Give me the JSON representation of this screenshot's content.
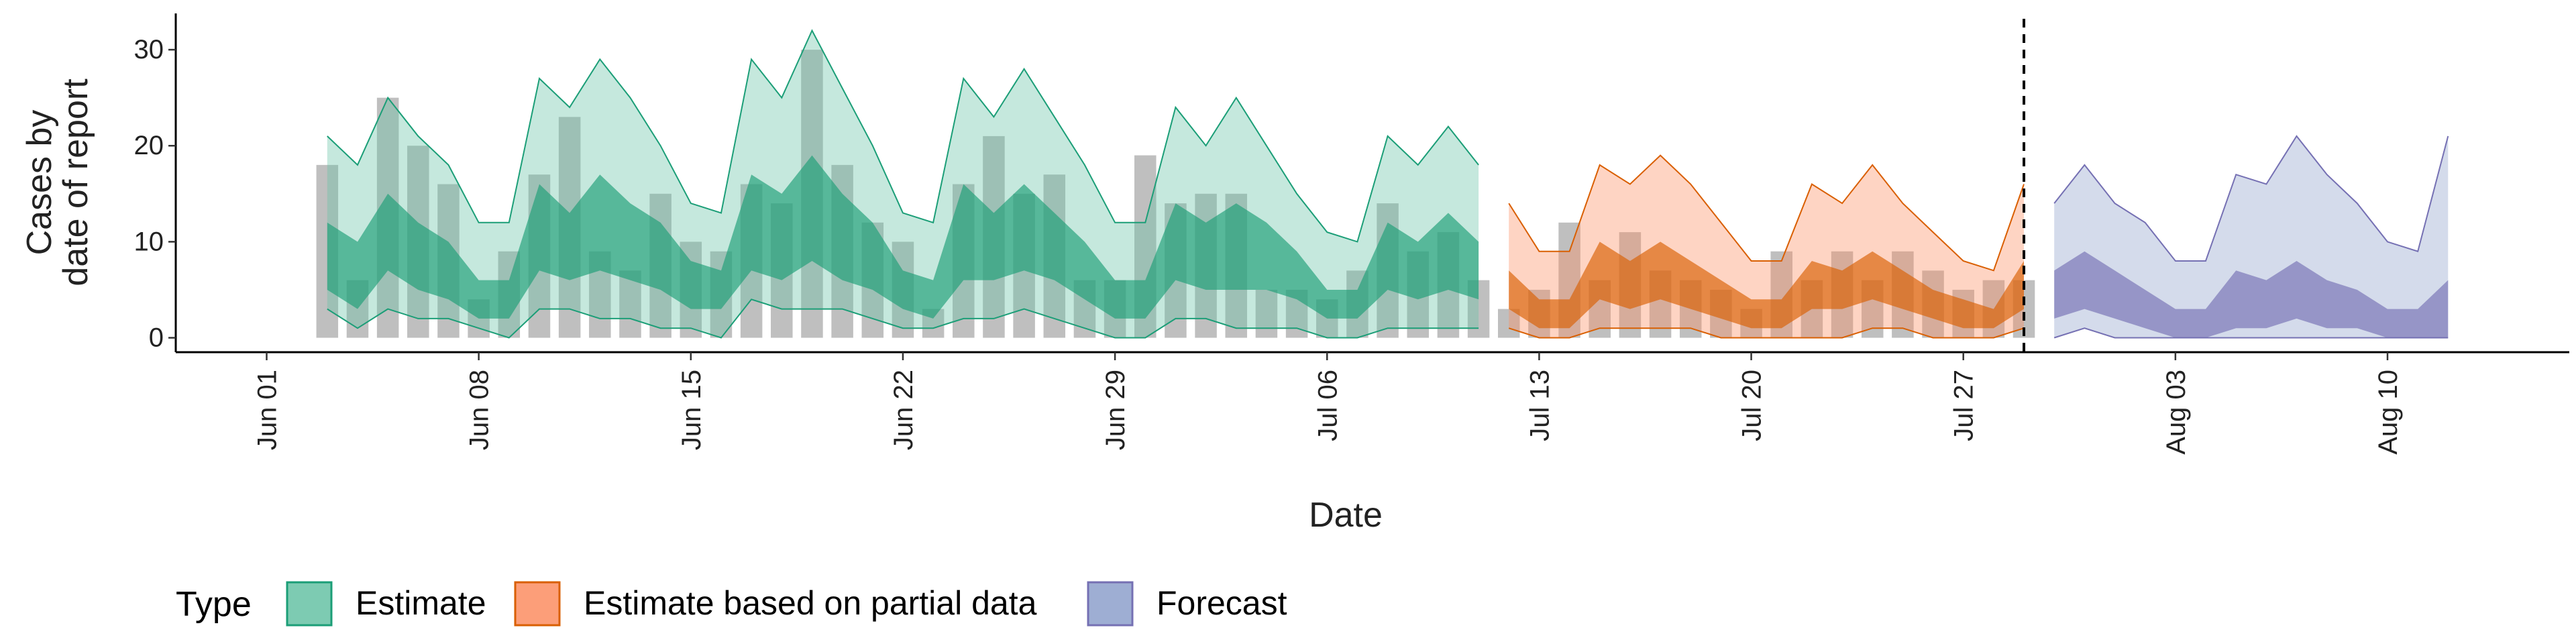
{
  "chart_data": {
    "type": "area",
    "xlabel": "Date",
    "ylabel": [
      "Cases by",
      "date of report"
    ],
    "x_ticks": [
      {
        "date": "2020-06-01",
        "label": "Jun 01"
      },
      {
        "date": "2020-06-08",
        "label": "Jun 08"
      },
      {
        "date": "2020-06-15",
        "label": "Jun 15"
      },
      {
        "date": "2020-06-22",
        "label": "Jun 22"
      },
      {
        "date": "2020-06-29",
        "label": "Jun 29"
      },
      {
        "date": "2020-07-06",
        "label": "Jul 06"
      },
      {
        "date": "2020-07-13",
        "label": "Jul 13"
      },
      {
        "date": "2020-07-20",
        "label": "Jul 20"
      },
      {
        "date": "2020-07-27",
        "label": "Jul 27"
      },
      {
        "date": "2020-08-03",
        "label": "Aug 03"
      },
      {
        "date": "2020-08-10",
        "label": "Aug 10"
      }
    ],
    "y_ticks": [
      0,
      10,
      20,
      30
    ],
    "xlim": [
      "2020-05-29",
      "2020-08-16"
    ],
    "ylim": [
      -1.5,
      33.5
    ],
    "grid": false,
    "vline_date": "2020-07-29",
    "legend": {
      "title": "Type",
      "position": "bottom",
      "entries": [
        {
          "label": "Estimate",
          "fill": "#66c2a5",
          "stroke": "#1b9e77"
        },
        {
          "label": "Estimate based on partial data",
          "fill": "#fc8d62",
          "stroke": "#d95f02"
        },
        {
          "label": "Forecast",
          "fill": "#8da0cb",
          "stroke": "#7570b3"
        }
      ]
    },
    "bars": {
      "color": "#a9a9a9",
      "dates": [
        "2020-06-03",
        "2020-06-04",
        "2020-06-05",
        "2020-06-06",
        "2020-06-07",
        "2020-06-08",
        "2020-06-09",
        "2020-06-10",
        "2020-06-11",
        "2020-06-12",
        "2020-06-13",
        "2020-06-14",
        "2020-06-15",
        "2020-06-16",
        "2020-06-17",
        "2020-06-18",
        "2020-06-19",
        "2020-06-20",
        "2020-06-21",
        "2020-06-22",
        "2020-06-23",
        "2020-06-24",
        "2020-06-25",
        "2020-06-26",
        "2020-06-27",
        "2020-06-28",
        "2020-06-29",
        "2020-06-30",
        "2020-07-01",
        "2020-07-02",
        "2020-07-03",
        "2020-07-04",
        "2020-07-05",
        "2020-07-06",
        "2020-07-07",
        "2020-07-08",
        "2020-07-09",
        "2020-07-10",
        "2020-07-11",
        "2020-07-12",
        "2020-07-13",
        "2020-07-14",
        "2020-07-15",
        "2020-07-16",
        "2020-07-17",
        "2020-07-18",
        "2020-07-19",
        "2020-07-20",
        "2020-07-21",
        "2020-07-22",
        "2020-07-23",
        "2020-07-24",
        "2020-07-25",
        "2020-07-26",
        "2020-07-27",
        "2020-07-28",
        "2020-07-29"
      ],
      "values": [
        18,
        6,
        25,
        20,
        16,
        4,
        9,
        17,
        23,
        9,
        7,
        15,
        10,
        9,
        16,
        14,
        30,
        18,
        12,
        10,
        3,
        16,
        21,
        15,
        17,
        6,
        6,
        19,
        14,
        15,
        15,
        5,
        5,
        4,
        7,
        14,
        9,
        11,
        6,
        3,
        5,
        12,
        6,
        11,
        7,
        6,
        5,
        3,
        9,
        6,
        9,
        6,
        9,
        7,
        5,
        6,
        6
      ]
    },
    "series": [
      {
        "name": "Estimate",
        "dates": [
          "2020-06-03",
          "2020-06-04",
          "2020-06-05",
          "2020-06-06",
          "2020-06-07",
          "2020-06-08",
          "2020-06-09",
          "2020-06-10",
          "2020-06-11",
          "2020-06-12",
          "2020-06-13",
          "2020-06-14",
          "2020-06-15",
          "2020-06-16",
          "2020-06-17",
          "2020-06-18",
          "2020-06-19",
          "2020-06-20",
          "2020-06-21",
          "2020-06-22",
          "2020-06-23",
          "2020-06-24",
          "2020-06-25",
          "2020-06-26",
          "2020-06-27",
          "2020-06-28",
          "2020-06-29",
          "2020-06-30",
          "2020-07-01",
          "2020-07-02",
          "2020-07-03",
          "2020-07-04",
          "2020-07-05",
          "2020-07-06",
          "2020-07-07",
          "2020-07-08",
          "2020-07-09",
          "2020-07-10",
          "2020-07-11"
        ],
        "outer_upper": [
          21,
          18,
          25,
          21,
          18,
          12,
          12,
          27,
          24,
          29,
          25,
          20,
          14,
          13,
          29,
          25,
          32,
          26,
          20,
          13,
          12,
          27,
          23,
          28,
          23,
          18,
          12,
          12,
          24,
          20,
          25,
          20,
          15,
          11,
          10,
          21,
          18,
          22,
          18
        ],
        "outer_lower": [
          3,
          1,
          3,
          2,
          2,
          1,
          0,
          3,
          3,
          2,
          2,
          1,
          1,
          0,
          4,
          3,
          3,
          3,
          2,
          1,
          1,
          2,
          2,
          3,
          2,
          1,
          0,
          0,
          2,
          2,
          1,
          1,
          1,
          0,
          0,
          1,
          1,
          1,
          1
        ],
        "inner_upper": [
          12,
          10,
          15,
          12,
          10,
          6,
          6,
          16,
          13,
          17,
          14,
          12,
          8,
          7,
          17,
          15,
          19,
          15,
          12,
          7,
          6,
          16,
          13,
          16,
          13,
          10,
          6,
          6,
          14,
          12,
          14,
          12,
          9,
          5,
          5,
          12,
          10,
          13,
          10
        ],
        "inner_lower": [
          5,
          3,
          7,
          5,
          4,
          2,
          2,
          7,
          6,
          7,
          6,
          5,
          3,
          3,
          7,
          6,
          8,
          6,
          5,
          3,
          2,
          6,
          6,
          7,
          6,
          4,
          2,
          2,
          6,
          5,
          5,
          5,
          4,
          2,
          2,
          5,
          4,
          5,
          4
        ]
      },
      {
        "name": "Estimate based on partial data",
        "dates": [
          "2020-07-12",
          "2020-07-13",
          "2020-07-14",
          "2020-07-15",
          "2020-07-16",
          "2020-07-17",
          "2020-07-18",
          "2020-07-19",
          "2020-07-20",
          "2020-07-21",
          "2020-07-22",
          "2020-07-23",
          "2020-07-24",
          "2020-07-25",
          "2020-07-26",
          "2020-07-27",
          "2020-07-28",
          "2020-07-29"
        ],
        "outer_upper": [
          14,
          9,
          9,
          18,
          16,
          19,
          16,
          12,
          8,
          8,
          16,
          14,
          18,
          14,
          11,
          8,
          7,
          16
        ],
        "outer_lower": [
          1,
          0,
          0,
          1,
          1,
          1,
          1,
          0,
          0,
          0,
          0,
          0,
          1,
          1,
          0,
          0,
          0,
          1
        ],
        "inner_upper": [
          7,
          4,
          4,
          10,
          8,
          10,
          8,
          6,
          4,
          4,
          8,
          7,
          9,
          7,
          5,
          4,
          3,
          8
        ],
        "inner_lower": [
          3,
          1,
          1,
          4,
          3,
          4,
          3,
          2,
          1,
          1,
          3,
          3,
          4,
          3,
          2,
          1,
          1,
          3
        ]
      },
      {
        "name": "Forecast",
        "dates": [
          "2020-07-30",
          "2020-07-31",
          "2020-08-01",
          "2020-08-02",
          "2020-08-03",
          "2020-08-04",
          "2020-08-05",
          "2020-08-06",
          "2020-08-07",
          "2020-08-08",
          "2020-08-09",
          "2020-08-10",
          "2020-08-11",
          "2020-08-12"
        ],
        "outer_upper": [
          14,
          18,
          14,
          12,
          8,
          8,
          17,
          16,
          21,
          17,
          14,
          10,
          9,
          21
        ],
        "outer_lower": [
          0,
          1,
          0,
          0,
          0,
          0,
          0,
          0,
          0,
          0,
          0,
          0,
          0,
          0
        ],
        "inner_upper": [
          7,
          9,
          7,
          5,
          3,
          3,
          7,
          6,
          8,
          6,
          5,
          3,
          3,
          6
        ],
        "inner_lower": [
          2,
          3,
          2,
          1,
          0,
          0,
          1,
          1,
          2,
          1,
          1,
          0,
          0,
          0
        ]
      }
    ]
  }
}
